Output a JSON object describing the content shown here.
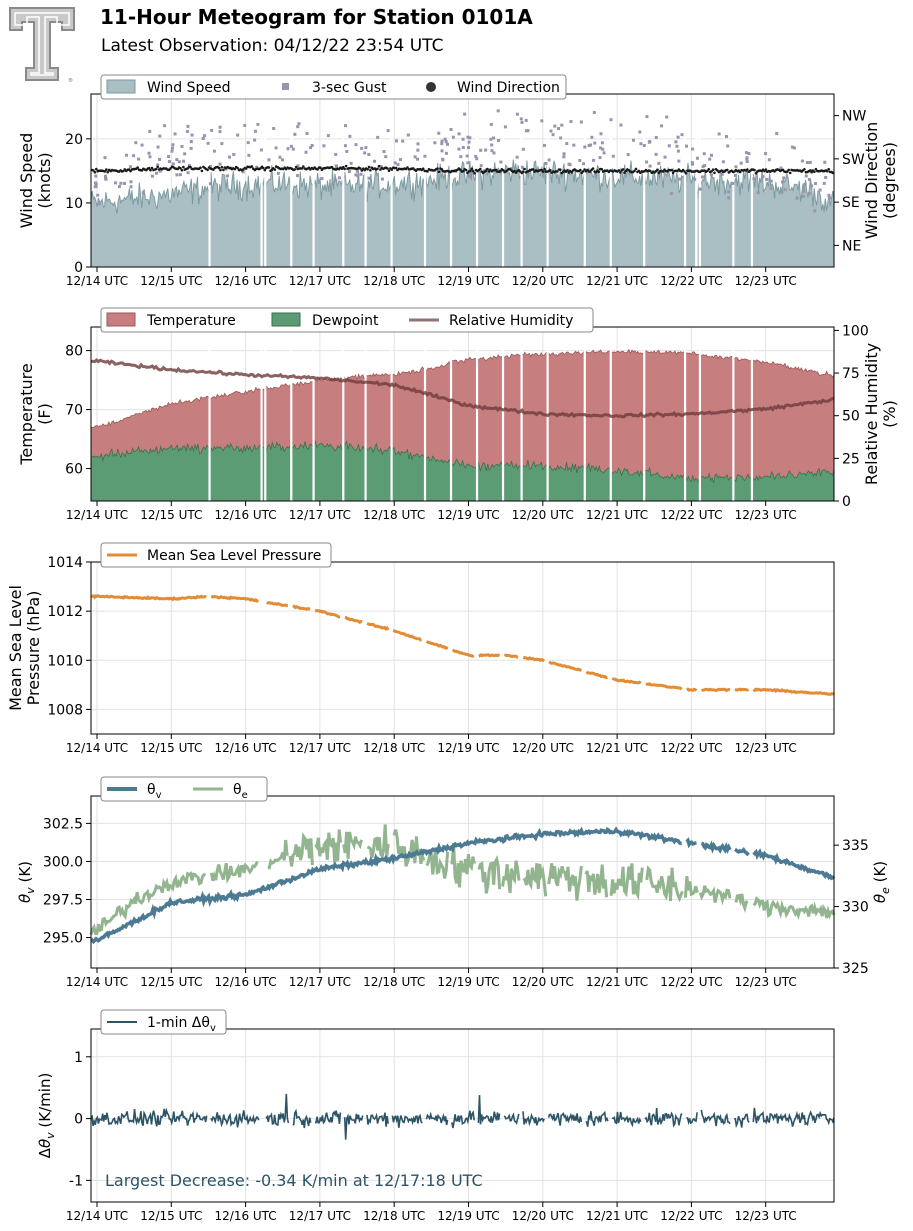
{
  "header": {
    "title": "11-Hour Meteogram for Station 0101A",
    "subtitle": "Latest Observation: 04/12/22 23:54 UTC",
    "logo_text": "T"
  },
  "colors": {
    "wind_speed": "#a9bfc4",
    "wind_speed_line": "#7d9aa0",
    "gust": "#9b93ad",
    "wind_dir": "#1a1a1a",
    "temperature": "#c67e7e",
    "dewpoint": "#5c9c75",
    "rh": "#6e3b3b",
    "rh_legend": "#8f7275",
    "pressure": "#e28c36",
    "theta_v": "#4b7a92",
    "theta_e": "#92b58f",
    "dtheta": "#2d5466",
    "annotation": "#2d5466"
  },
  "time_ticks": [
    "12/14 UTC",
    "12/15 UTC",
    "12/16 UTC",
    "12/17 UTC",
    "12/18 UTC",
    "12/19 UTC",
    "12/20 UTC",
    "12/21 UTC",
    "12/22 UTC",
    "12/23 UTC"
  ],
  "chart_data": [
    {
      "type": "area",
      "name": "wind",
      "ylabel": "Wind Speed\n(knots)",
      "ylim": [
        0,
        27
      ],
      "yticks": [
        0,
        10,
        20
      ],
      "y2label": "Wind Direction\n(degrees)",
      "y2ticks": [
        "NE",
        "SE",
        "SW",
        "NW"
      ],
      "y2_values": [
        45,
        135,
        225,
        315
      ],
      "y2lim": [
        0,
        360
      ],
      "x_range": [
        "12/14 UTC",
        "end"
      ],
      "legend": [
        "Wind Speed",
        "3-sec Gust",
        "Wind Direction"
      ],
      "legend_position": "top-left",
      "grid": true,
      "series": [
        {
          "name": "Wind Speed",
          "profile_x": [
            0,
            0.8,
            1.6,
            2.4,
            3.2,
            4,
            4.8,
            5.6,
            6.4,
            7.2,
            8,
            8.8,
            9.6,
            10
          ],
          "profile_y": [
            10,
            11,
            12.5,
            13,
            12.5,
            13,
            14,
            15,
            14.5,
            14,
            13.5,
            13.5,
            12,
            9
          ]
        },
        {
          "name": "3-sec Gust",
          "profile_x": [
            0,
            1,
            2,
            3,
            4,
            5,
            6,
            7,
            8,
            9,
            10
          ],
          "profile_y": [
            13,
            17,
            18,
            17,
            16,
            19,
            20,
            19,
            17,
            15,
            12
          ]
        },
        {
          "name": "Wind Direction",
          "profile_x": [
            0,
            1,
            2,
            3,
            4,
            5,
            6,
            7,
            8,
            9,
            10
          ],
          "profile_y": [
            200,
            205,
            205,
            205,
            205,
            200,
            200,
            200,
            200,
            200,
            200
          ]
        }
      ]
    },
    {
      "type": "area",
      "name": "temperature",
      "ylabel": "Temperature\n(F)",
      "ylim": [
        54.5,
        84
      ],
      "yticks": [
        60,
        70,
        80
      ],
      "y2label": "Relative Humidity\n(%)",
      "y2lim": [
        0,
        102
      ],
      "y2ticks": [
        0,
        25,
        50,
        75,
        100
      ],
      "legend": [
        "Temperature",
        "Dewpoint",
        "Relative Humidity"
      ],
      "legend_position": "top-left",
      "grid": true,
      "series": [
        {
          "name": "Temperature",
          "profile_x": [
            0,
            1,
            2,
            3,
            4,
            4.5,
            5,
            6,
            7,
            8,
            9,
            10
          ],
          "profile_y": [
            67,
            71,
            73,
            75,
            76,
            77,
            78.5,
            79.5,
            80,
            79.5,
            78,
            75.5
          ]
        },
        {
          "name": "Dewpoint",
          "profile_x": [
            0,
            1,
            2,
            3,
            4,
            5,
            6,
            7,
            8,
            9,
            10
          ],
          "profile_y": [
            62,
            63.5,
            63.5,
            64,
            63,
            60.5,
            60.5,
            59.5,
            58.5,
            58.5,
            59.5
          ]
        },
        {
          "name": "Relative Humidity",
          "profile_x": [
            0,
            1,
            2,
            3,
            4,
            5,
            6,
            7,
            8,
            9,
            10
          ],
          "profile_y": [
            82,
            77,
            74,
            72,
            68,
            56,
            51,
            50,
            51,
            54,
            60
          ]
        }
      ]
    },
    {
      "type": "line",
      "name": "pressure",
      "ylabel": "Mean Sea Level\nPressure (hPa)",
      "ylim": [
        1007,
        1014
      ],
      "yticks": [
        1008,
        1010,
        1012,
        1014
      ],
      "legend": [
        "Mean Sea Level Pressure"
      ],
      "legend_position": "top-left",
      "grid": true,
      "series": [
        {
          "name": "Mean Sea Level Pressure",
          "profile_x": [
            0,
            1,
            1.5,
            2,
            3,
            3.5,
            4,
            5,
            5.5,
            6,
            7,
            8,
            9,
            10
          ],
          "profile_y": [
            1012.6,
            1012.5,
            1012.6,
            1012.5,
            1012.0,
            1011.6,
            1011.2,
            1010.2,
            1010.2,
            1010.0,
            1009.2,
            1008.8,
            1008.8,
            1008.6
          ]
        }
      ]
    },
    {
      "type": "line",
      "name": "theta",
      "ylabel": "θv (K)",
      "ylim": [
        293,
        304.3
      ],
      "yticks": [
        "295.0",
        "297.5",
        "300.0",
        "302.5"
      ],
      "y2label": "θe (K)",
      "y2lim": [
        325,
        339
      ],
      "y2ticks": [
        325,
        330,
        335
      ],
      "legend": [
        "θv",
        "θe"
      ],
      "legend_position": "top-left",
      "grid": true,
      "series": [
        {
          "name": "θv",
          "profile_x": [
            0,
            1,
            2,
            3,
            4,
            5,
            6,
            7,
            8,
            9,
            10
          ],
          "profile_y": [
            294.8,
            297.3,
            297.8,
            299.5,
            300.2,
            301.2,
            301.8,
            302.0,
            301.2,
            300.4,
            298.8
          ]
        },
        {
          "name": "θe",
          "profile_x": [
            0,
            0.5,
            1,
            2,
            3,
            4,
            5,
            6,
            7,
            8,
            9,
            10
          ],
          "profile_y": [
            328,
            330.5,
            332,
            333,
            335,
            335,
            333,
            332.5,
            332,
            331.5,
            330,
            329.5
          ]
        }
      ]
    },
    {
      "type": "line",
      "name": "dtheta",
      "ylabel": "Δθv (K/min)",
      "ylim": [
        -1.35,
        1.45
      ],
      "yticks": [
        -1,
        0,
        1
      ],
      "legend": [
        "1-min Δθv"
      ],
      "legend_position": "top-left",
      "grid": true,
      "annotation": "Largest Decrease: -0.34 K/min at 12/17:18 UTC",
      "series": [
        {
          "name": "1-min Δθv",
          "mean": 0.0,
          "amplitude": 0.12,
          "extremes": [
            [
              3.35,
              -0.34
            ],
            [
              5.15,
              0.38
            ],
            [
              2.55,
              0.4
            ]
          ]
        }
      ]
    }
  ]
}
